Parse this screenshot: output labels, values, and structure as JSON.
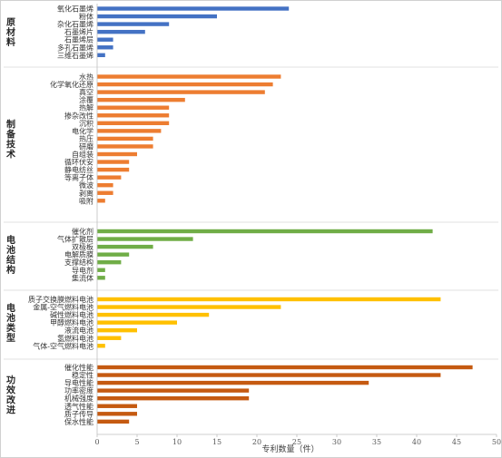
{
  "chart_data": {
    "type": "bar",
    "orientation": "horizontal",
    "xlabel": "专利数量（件）",
    "xlim": [
      0,
      50
    ],
    "xticks": [
      0,
      5,
      10,
      15,
      20,
      25,
      30,
      35,
      40,
      45,
      50
    ],
    "grid": false,
    "legend": "none",
    "groups": [
      {
        "name": "原材料",
        "color": "#4472c4",
        "categories": [
          "氧化石墨烯",
          "粉体",
          "杂化石墨烯",
          "石墨烯片",
          "石墨烯层",
          "多孔石墨烯",
          "三维石墨烯"
        ],
        "values": [
          24,
          15,
          9,
          6,
          2,
          2,
          1
        ]
      },
      {
        "name": "制备技术",
        "color": "#ed7d31",
        "categories": [
          "水热",
          "化学氧化还原",
          "真空",
          "涂覆",
          "热解",
          "掺杂改性",
          "沉积",
          "电化学",
          "热压",
          "研磨",
          "自组装",
          "循环伏安",
          "静电纺丝",
          "等离子体",
          "微波",
          "剥离",
          "吸附"
        ],
        "values": [
          23,
          22,
          21,
          11,
          9,
          9,
          9,
          8,
          7,
          7,
          5,
          4,
          4,
          3,
          2,
          2,
          1
        ]
      },
      {
        "name": "电池结构",
        "color": "#70ad47",
        "categories": [
          "催化剂",
          "气体扩散层",
          "双极板",
          "电解质膜",
          "支撑结构",
          "导电剂",
          "集流体"
        ],
        "values": [
          42,
          12,
          7,
          4,
          3,
          1,
          1
        ]
      },
      {
        "name": "电池类型",
        "color": "#ffc000",
        "categories": [
          "质子交换膜燃料电池",
          "金属-空气燃料电池",
          "碱性燃料电池",
          "甲醇燃料电池",
          "液流电池",
          "氢燃料电池",
          "气体-空气燃料电池"
        ],
        "values": [
          43,
          23,
          14,
          10,
          5,
          3,
          1
        ]
      },
      {
        "name": "功效改进",
        "color": "#c55a11",
        "categories": [
          "催化性能",
          "稳定性",
          "导电性能",
          "功率密度",
          "机械强度",
          "透气性能",
          "质子传导",
          "保水性能"
        ],
        "values": [
          47,
          43,
          34,
          19,
          19,
          5,
          5,
          4
        ]
      }
    ]
  }
}
